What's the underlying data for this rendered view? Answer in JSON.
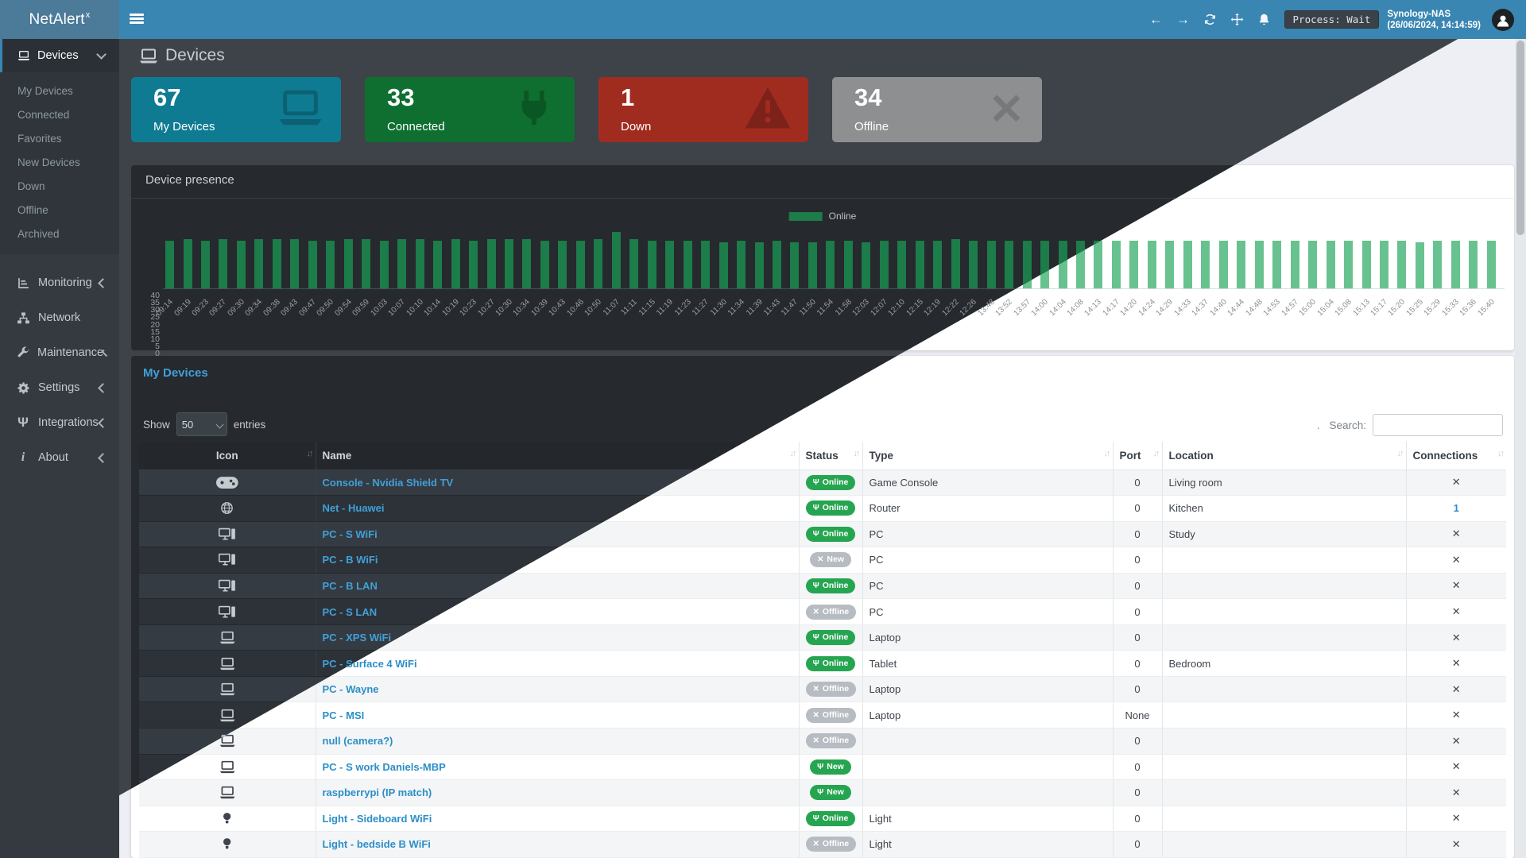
{
  "theme_colors": {
    "navbar_blue": "#3a86b3",
    "brand_blue": "#4b7b99",
    "sidebar_dark": "#343a40",
    "dark_bg": "#3d4349",
    "light_bg": "#edeff4",
    "bar_green_dark": "#1c7c4a",
    "bar_green_light": "#68c290",
    "badge_green": "#26a551",
    "badge_gray": "#b6bcc2"
  },
  "navbar": {
    "brand": "NetAlert",
    "brand_sup": "x",
    "process_badge": "Process: Wait",
    "host": "Synology-NAS",
    "timestamp": "(26/06/2024, 14:14:59)"
  },
  "sidebar": {
    "devices": {
      "label": "Devices",
      "submenu": [
        "My Devices",
        "Connected",
        "Favorites",
        "New Devices",
        "Down",
        "Offline",
        "Archived"
      ]
    },
    "items": [
      {
        "icon": "barchart",
        "label": "Monitoring",
        "chevron": true
      },
      {
        "icon": "network",
        "label": "Network",
        "chevron": false
      },
      {
        "icon": "wrench",
        "label": "Maintenance",
        "chevron": true
      },
      {
        "icon": "gear",
        "label": "Settings",
        "chevron": true
      },
      {
        "icon": "plug",
        "label": "Integrations",
        "chevron": true
      },
      {
        "icon": "info",
        "label": "About",
        "chevron": true
      }
    ]
  },
  "page": {
    "title": "Devices"
  },
  "cards": [
    {
      "value": "67",
      "label": "My Devices",
      "color": "#0f7b93",
      "icon": "laptop"
    },
    {
      "value": "33",
      "label": "Connected",
      "color": "#0e6f30",
      "icon": "plug"
    },
    {
      "value": "1",
      "label": "Down",
      "color": "#a02c20",
      "icon": "warning"
    },
    {
      "value": "34",
      "label": "Offline",
      "color": "#8e8f91",
      "icon": "x"
    }
  ],
  "chart_data": {
    "type": "bar",
    "title": "Device presence",
    "legend": [
      "Online"
    ],
    "legend_position": "top-center",
    "xlabel": "",
    "ylabel": "",
    "ylim": [
      0,
      40
    ],
    "yticks": [
      0,
      5,
      10,
      15,
      20,
      25,
      30,
      35,
      40
    ],
    "grid": false,
    "series": [
      {
        "name": "Online",
        "color_dark": "#1c7c4a",
        "color_light": "#68c290"
      }
    ],
    "x": [
      "09:14",
      "09:19",
      "09:23",
      "09:27",
      "09:30",
      "09:34",
      "09:38",
      "09:43",
      "09:47",
      "09:50",
      "09:54",
      "09:59",
      "10:03",
      "10:07",
      "10:10",
      "10:14",
      "10:19",
      "10:23",
      "10:27",
      "10:30",
      "10:34",
      "10:39",
      "10:43",
      "10:46",
      "10:50",
      "11:07",
      "11:11",
      "11:15",
      "11:19",
      "11:23",
      "11:27",
      "11:30",
      "11:34",
      "11:39",
      "11:43",
      "11:47",
      "11:50",
      "11:54",
      "11:58",
      "12:03",
      "12:07",
      "12:10",
      "12:15",
      "12:19",
      "12:22",
      "12:26",
      "13:48",
      "13:52",
      "13:57",
      "14:00",
      "14:04",
      "14:08",
      "14:13",
      "14:17",
      "14:20",
      "14:24",
      "14:29",
      "14:33",
      "14:37",
      "14:40",
      "14:44",
      "14:48",
      "14:53",
      "14:57",
      "15:00",
      "15:04",
      "15:08",
      "15:13",
      "15:17",
      "15:20",
      "15:25",
      "15:29",
      "15:33",
      "15:36",
      "15:40"
    ],
    "values": [
      33,
      34,
      33,
      34,
      33,
      34,
      34,
      34,
      33,
      33,
      34,
      34,
      33,
      34,
      34,
      33,
      34,
      33,
      34,
      34,
      34,
      33,
      33,
      33,
      34,
      39,
      34,
      33,
      33,
      33,
      33,
      32,
      33,
      32,
      33,
      32,
      32,
      33,
      33,
      32,
      33,
      33,
      33,
      33,
      34,
      33,
      33,
      33,
      33,
      33,
      33,
      33,
      33,
      33,
      33,
      33,
      33,
      33,
      33,
      33,
      33,
      33,
      33,
      33,
      33,
      33,
      33,
      33,
      33,
      33,
      32,
      33,
      33,
      33,
      33
    ]
  },
  "table": {
    "title": "My Devices",
    "show_label": "Show",
    "entries_value": "50",
    "entries_label": "entries",
    "dot": ".",
    "search_label": "Search:",
    "search_value": "",
    "columns": [
      {
        "label": "Icon",
        "sortable": true,
        "align": "center"
      },
      {
        "label": "Name",
        "sortable": true,
        "align": "left"
      },
      {
        "label": "Status",
        "sortable": true,
        "align": "left"
      },
      {
        "label": "Type",
        "sortable": true,
        "align": "left"
      },
      {
        "label": "Port",
        "sortable": true,
        "align": "left"
      },
      {
        "label": "Location",
        "sortable": true,
        "align": "left"
      },
      {
        "label": "Connections",
        "sortable": true,
        "align": "left"
      }
    ],
    "statuses": {
      "online": {
        "label": "Online",
        "icon": "plug",
        "color": "#26a551"
      },
      "offline": {
        "label": "Offline",
        "icon": "x",
        "color": "#b6bcc2"
      },
      "new_green": {
        "label": "New",
        "icon": "plug",
        "color": "#26a551"
      },
      "new_gray": {
        "label": "New",
        "icon": "x",
        "color": "#b6bcc2"
      }
    },
    "rows": [
      {
        "icon": "gamepad",
        "name": "Console - Nvidia Shield TV",
        "status": "online",
        "type": "Game Console",
        "port": "0",
        "location": "Living room",
        "connections": "x"
      },
      {
        "icon": "globe",
        "name": "Net - Huawei",
        "status": "online",
        "type": "Router",
        "port": "0",
        "location": "Kitchen",
        "connections": "1"
      },
      {
        "icon": "desktop",
        "name": "PC - S WiFi",
        "status": "online",
        "type": "PC",
        "port": "0",
        "location": "Study",
        "connections": "x"
      },
      {
        "icon": "desktop",
        "name": "PC - B WiFi",
        "status": "new_gray",
        "type": "PC",
        "port": "0",
        "location": "",
        "connections": "x"
      },
      {
        "icon": "desktop",
        "name": "PC - B LAN",
        "status": "online",
        "type": "PC",
        "port": "0",
        "location": "",
        "connections": "x"
      },
      {
        "icon": "desktop",
        "name": "PC - S LAN",
        "status": "offline",
        "type": "PC",
        "port": "0",
        "location": "",
        "connections": "x"
      },
      {
        "icon": "laptop",
        "name": "PC - XPS WiFi",
        "status": "online",
        "type": "Laptop",
        "port": "0",
        "location": "",
        "connections": "x"
      },
      {
        "icon": "laptop",
        "name": "PC - Surface 4 WiFi",
        "status": "online",
        "type": "Tablet",
        "port": "0",
        "location": "Bedroom",
        "connections": "x"
      },
      {
        "icon": "laptop",
        "name": "PC - Wayne",
        "status": "offline",
        "type": "Laptop",
        "port": "0",
        "location": "",
        "connections": "x"
      },
      {
        "icon": "laptop",
        "name": "PC - MSI",
        "status": "offline",
        "type": "Laptop",
        "port": "None",
        "location": "",
        "connections": "x"
      },
      {
        "icon": "laptop",
        "name": "null (camera?)",
        "status": "offline",
        "type": "",
        "port": "0",
        "location": "",
        "connections": "x"
      },
      {
        "icon": "laptop",
        "name": "PC - S work Daniels-MBP",
        "status": "new_green",
        "type": "",
        "port": "0",
        "location": "",
        "connections": "x"
      },
      {
        "icon": "laptop",
        "name": "raspberrypi (IP match)",
        "status": "new_green",
        "type": "",
        "port": "0",
        "location": "",
        "connections": "x"
      },
      {
        "icon": "bulb",
        "name": "Light - Sideboard WiFi",
        "status": "online",
        "type": "Light",
        "port": "0",
        "location": "",
        "connections": "x"
      },
      {
        "icon": "bulb",
        "name": "Light - bedside B WiFi",
        "status": "offline",
        "type": "Light",
        "port": "0",
        "location": "",
        "connections": "x"
      }
    ]
  }
}
